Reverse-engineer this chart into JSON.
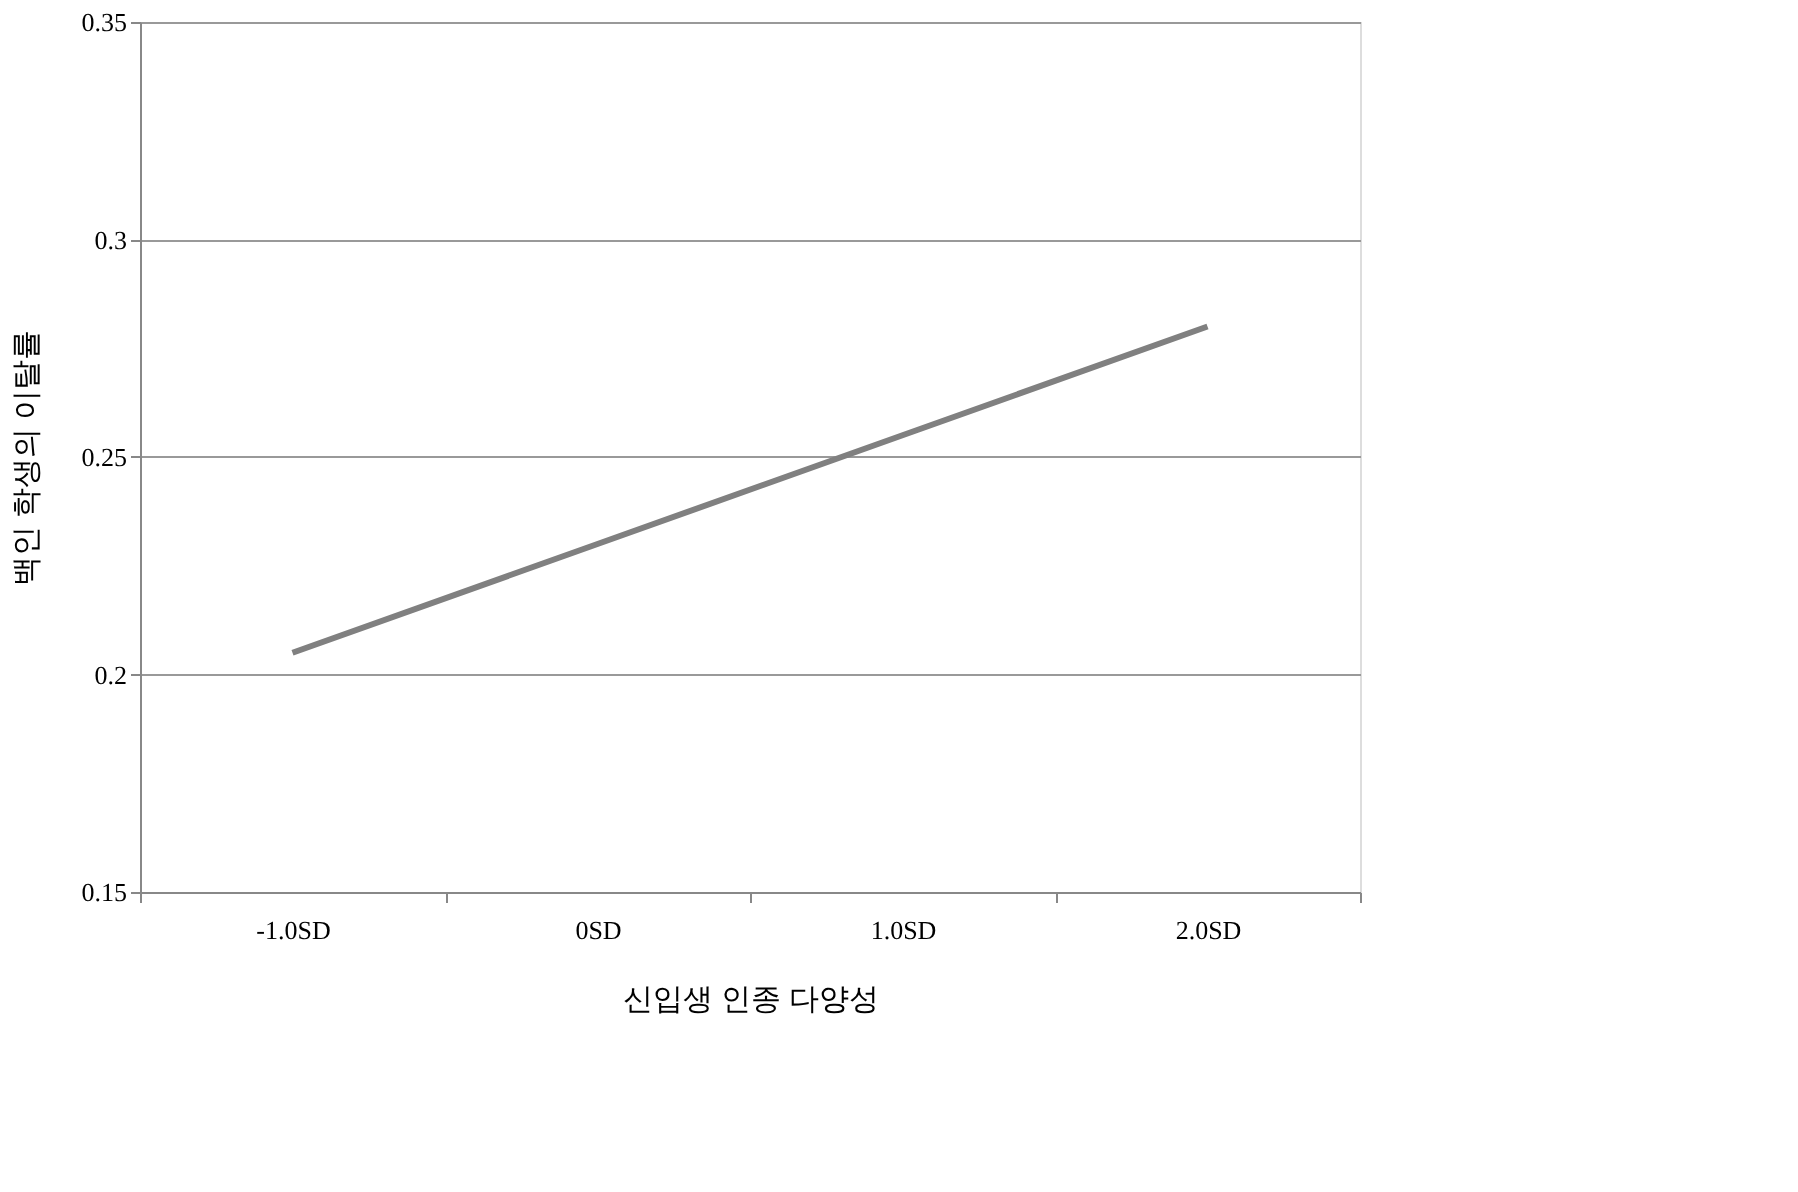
{
  "chart_data": {
    "type": "line",
    "xlabel": "신입생 인종 다양성",
    "ylabel": "백인 학생의 이탈률",
    "categories": [
      "-1.0SD",
      "0SD",
      "1.0SD",
      "2.0SD"
    ],
    "series": [
      {
        "color": "#808080",
        "values": [
          0.205,
          0.23,
          0.255,
          0.28
        ]
      }
    ],
    "ylim": [
      0.15,
      0.35
    ],
    "yticks": [
      0.15,
      0.2,
      0.25,
      0.3,
      0.35
    ],
    "grid": "y",
    "marker": "none",
    "line_style": "solid"
  }
}
